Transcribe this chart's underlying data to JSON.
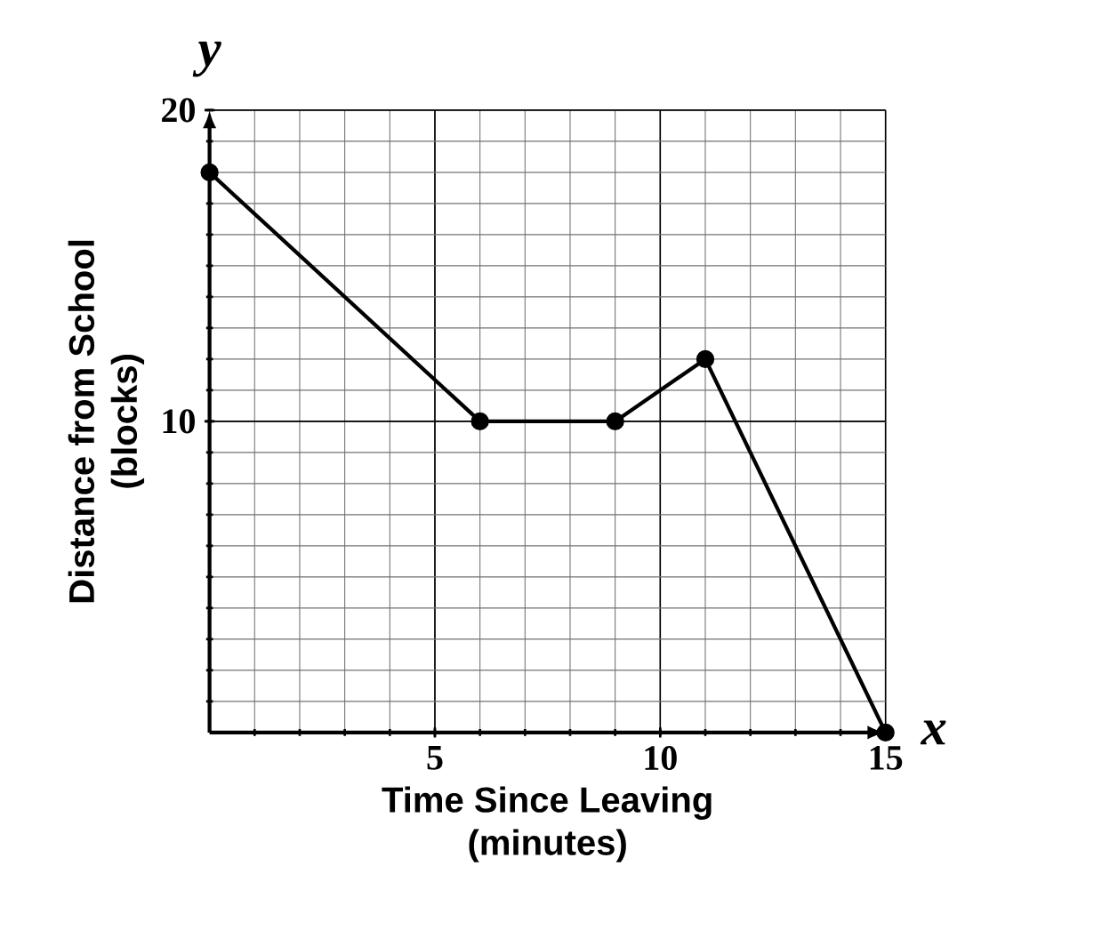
{
  "chart_data": {
    "type": "line",
    "xlabel": "Time Since Leaving\n(minutes)",
    "ylabel": "Distance from School\n(blocks)",
    "annotations": [
      "x",
      "y"
    ],
    "x": [
      0,
      6,
      9,
      11,
      15
    ],
    "series": [
      {
        "color": "#000000",
        "values": [
          18,
          10,
          10,
          12,
          0
        ]
      }
    ],
    "xlim": [
      0,
      15
    ],
    "ylim": [
      0,
      20
    ],
    "xticks": [
      5,
      10,
      15
    ],
    "yticks": [
      10,
      20
    ],
    "grid": true,
    "marker": "circle",
    "line_style": "solid"
  }
}
